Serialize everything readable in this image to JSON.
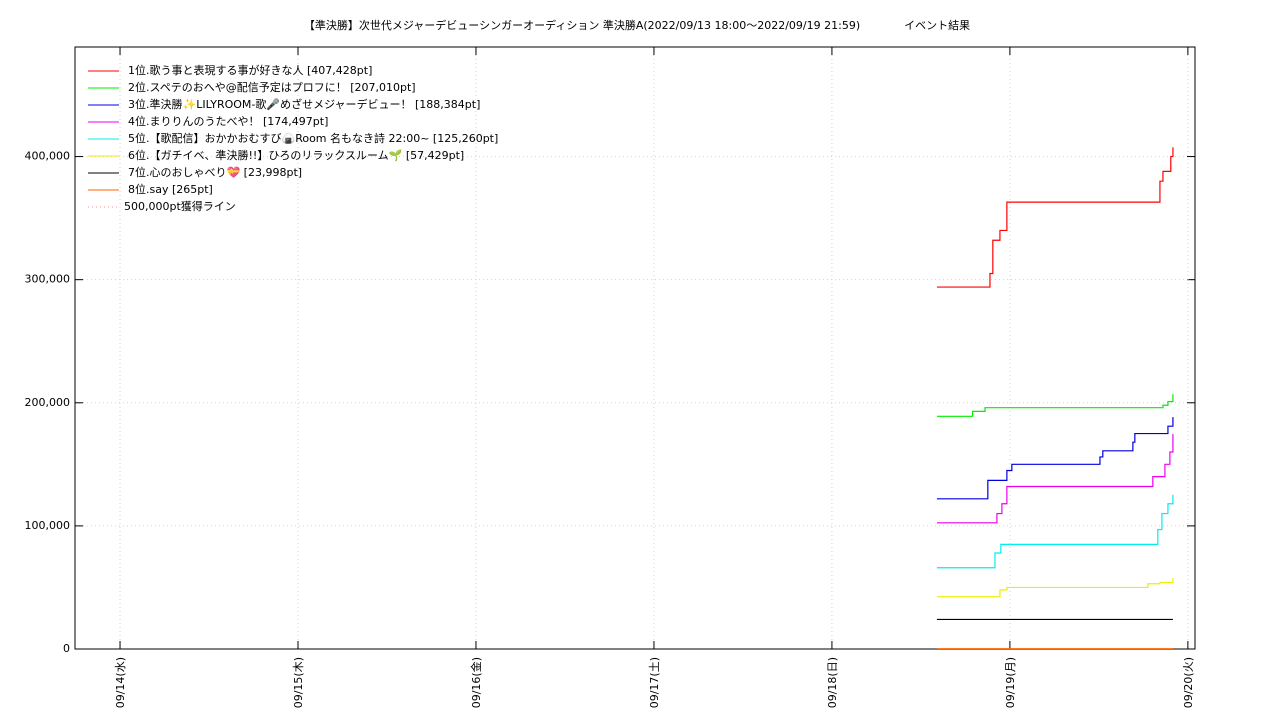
{
  "chart_data": {
    "type": "line",
    "step": true,
    "title": "【準決勝】次世代メジャーデビューシンガーオーディション 準決勝A(2022/09/13 18:00～2022/09/19 21:59)　　　　イベント結果",
    "xlim": [
      13.747,
      20.04
    ],
    "xticks": [
      {
        "value": 14,
        "label": "09/14(水)"
      },
      {
        "value": 15,
        "label": "09/15(木)"
      },
      {
        "value": 16,
        "label": "09/16(金)"
      },
      {
        "value": 17,
        "label": "09/17(土)"
      },
      {
        "value": 18,
        "label": "09/18(日)"
      },
      {
        "value": 19,
        "label": "09/19(月)"
      },
      {
        "value": 20,
        "label": "09/20(火)"
      }
    ],
    "ylim": [
      0,
      489000
    ],
    "yticks": [
      0,
      {
        "value": 100000,
        "label": "100,000"
      },
      {
        "value": 200000,
        "label": "200,000"
      },
      {
        "value": 300000,
        "label": "300,000"
      },
      {
        "value": 400000,
        "label": "400,000"
      }
    ],
    "grid": true,
    "legend": "top-left",
    "series": [
      {
        "name": "1位.歌う事と表現する事が好きな人 [407,428pt]",
        "color": "#ff0000",
        "x": [
          18.59,
          18.888,
          18.904,
          18.944,
          18.983,
          19.843,
          19.86,
          19.904,
          19.916
        ],
        "values": [
          294000,
          305000,
          332000,
          340000,
          363000,
          380000,
          388000,
          400000,
          407428
        ]
      },
      {
        "name": "2位.スペテのおへや@配信予定はプロフに！ [207,010pt]",
        "color": "#00ee00",
        "x": [
          18.59,
          18.79,
          18.86,
          19.86,
          19.888,
          19.916
        ],
        "values": [
          189000,
          193000,
          196000,
          198000,
          201000,
          207010
        ]
      },
      {
        "name": "3位.準決勝✨LILYROOM-歌🎤めざせメジャーデビュー！ [188,384pt]",
        "color": "#0000dd",
        "x": [
          18.59,
          18.876,
          18.983,
          19.011,
          19.506,
          19.522,
          19.691,
          19.702,
          19.888,
          19.916
        ],
        "values": [
          122000,
          137000,
          145000,
          150000,
          156000,
          161000,
          168000,
          175000,
          181000,
          188384
        ]
      },
      {
        "name": "4位.まりりんのうたべや！ [174,497pt]",
        "color": "#ee00ee",
        "x": [
          18.59,
          18.927,
          18.955,
          18.983,
          19.803,
          19.871,
          19.899,
          19.916
        ],
        "values": [
          102500,
          110000,
          118000,
          132000,
          140000,
          150000,
          160000,
          174497
        ]
      },
      {
        "name": "5位.【歌配信】おかかおむすび🍙Room 名もなき詩 22:00~ [125,260pt]",
        "color": "#00eeee",
        "x": [
          18.59,
          18.916,
          18.949,
          19.831,
          19.854,
          19.888,
          19.916
        ],
        "values": [
          66000,
          78000,
          85000,
          97000,
          110000,
          118000,
          125260
        ]
      },
      {
        "name": "6位.【ガチイベ、準決勝!!】ひろのリラックスルーム🌱 [57,429pt]",
        "color": "#eeee00",
        "x": [
          18.59,
          18.944,
          18.983,
          19.775,
          19.843,
          19.916
        ],
        "values": [
          42500,
          48000,
          50000,
          53000,
          54000,
          57429
        ]
      },
      {
        "name": "7位.心のおしゃべり💝 [23,998pt]",
        "color": "#000000",
        "x": [
          18.59,
          19.916
        ],
        "values": [
          23998,
          23998
        ]
      },
      {
        "name": "8位.say [265pt]",
        "color": "#ff6600",
        "x": [
          18.59,
          19.916
        ],
        "values": [
          265,
          265
        ]
      }
    ],
    "reference_line": {
      "name": "500,000pt獲得ライン",
      "value": 500000,
      "color": "#ff9999"
    }
  }
}
